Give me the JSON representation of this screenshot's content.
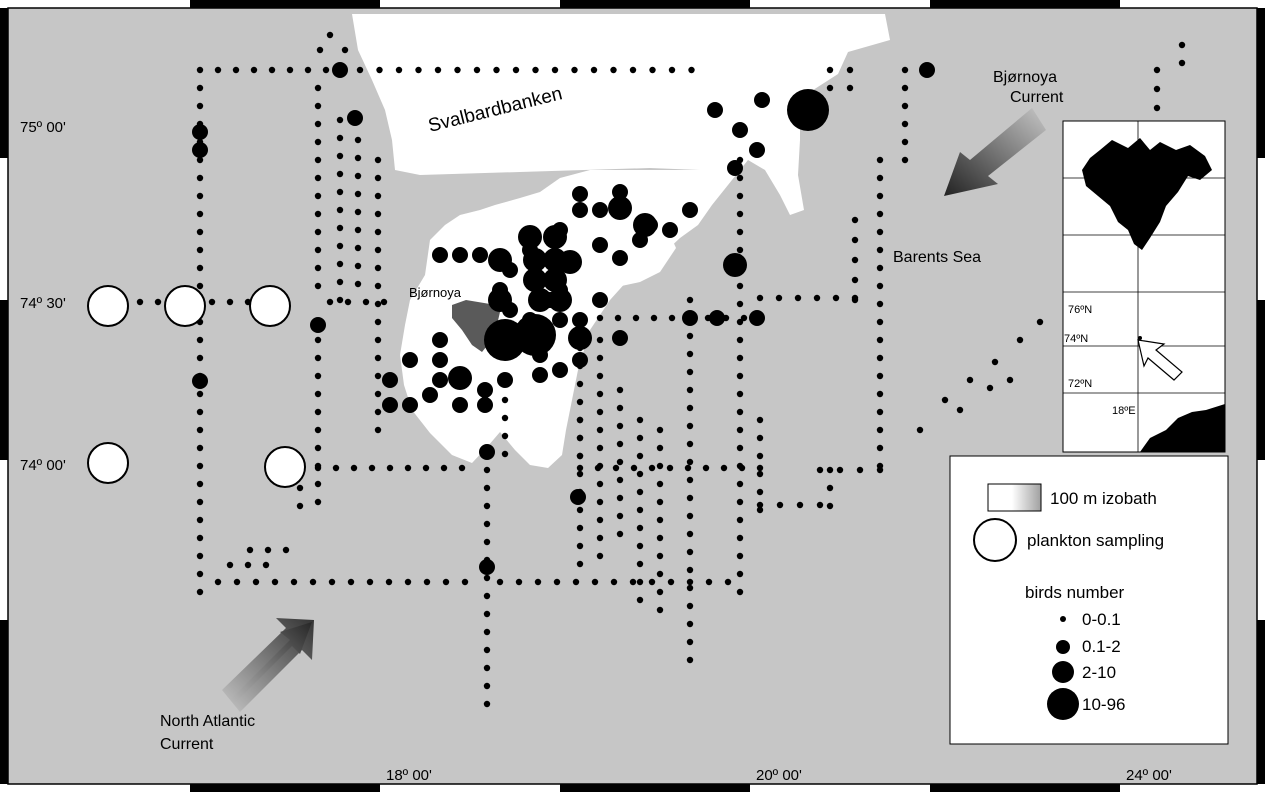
{
  "labels": {
    "svalbardbanken": "Svalbardbanken",
    "bjornoya_island": "Bjørnoya",
    "bjornoya_current_line1": "Bjørnoya",
    "bjornoya_current_line2": "Current",
    "barents_sea": "Barents Sea",
    "north_atlantic_line1": "North Atlantic",
    "north_atlantic_line2": "Current"
  },
  "latitude_labels": [
    "75º 00'",
    "74º 30'",
    "74º 00'"
  ],
  "longitude_labels": [
    "18º 00'",
    "20º 00'",
    "24º 00'"
  ],
  "inset": {
    "lat_labels": [
      "76ºN",
      "74ºN",
      "72ºN"
    ],
    "lon_label": "18ºE"
  },
  "legend": {
    "izobath": "100 m izobath",
    "plankton": "plankton sampling",
    "birds_title": "birds number",
    "classes": [
      "0-0.1",
      "0.1-2",
      "2-10",
      "10-96"
    ]
  },
  "colors": {
    "sea": "#c6c6c6",
    "bank": "#ffffff",
    "marker": "#000000",
    "island": "#5a5a5a",
    "arrow": "#4a4a4a"
  }
}
